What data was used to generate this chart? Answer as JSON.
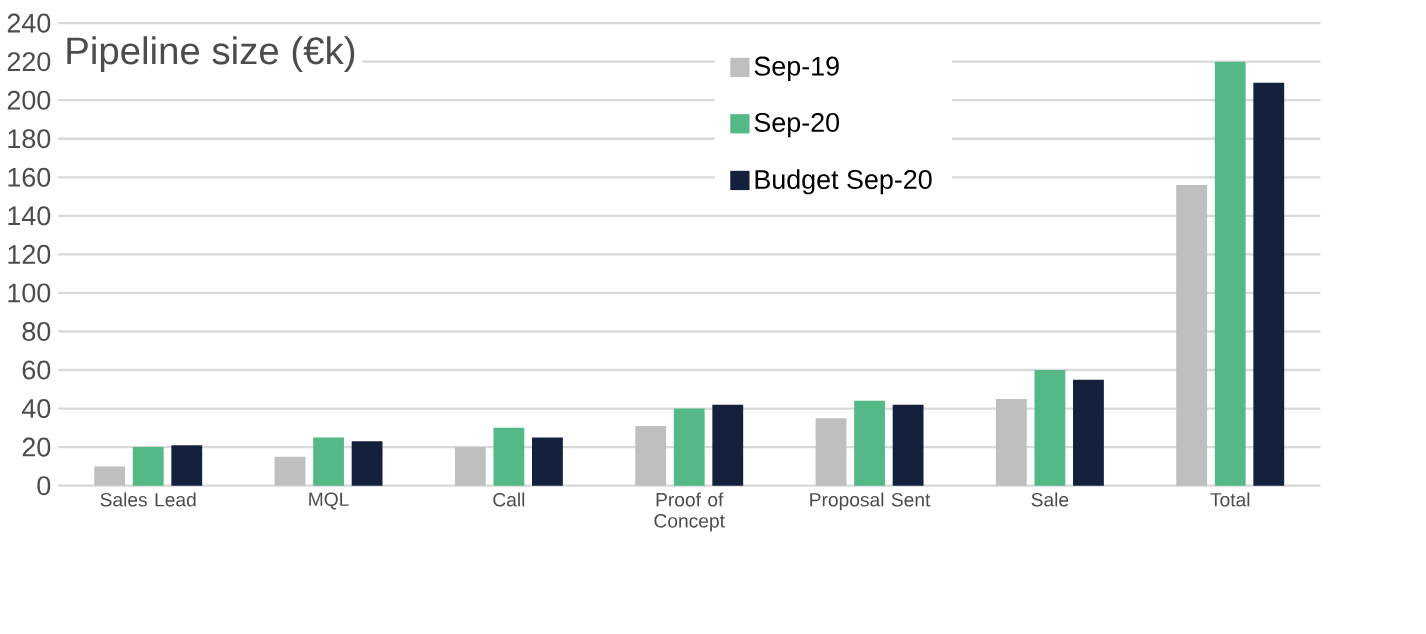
{
  "chart_data": {
    "type": "bar",
    "title": "Pipeline size (€k)",
    "categories": [
      "Sales Lead",
      "MQL",
      "Call",
      "Proof of Concept",
      "Proposal Sent",
      "Sale",
      "Total"
    ],
    "series": [
      {
        "name": "Sep-19",
        "color": "#bfbfbf",
        "values": [
          10,
          15,
          20,
          31,
          35,
          45,
          156
        ]
      },
      {
        "name": "Sep-20",
        "color": "#55b987",
        "values": [
          20,
          25,
          30,
          40,
          44,
          60,
          220
        ]
      },
      {
        "name": "Budget Sep-20",
        "color": "#14213d",
        "values": [
          21,
          23,
          25,
          42,
          42,
          55,
          209
        ]
      }
    ],
    "ylim": [
      0,
      240
    ],
    "yticks": [
      0,
      20,
      40,
      60,
      80,
      100,
      120,
      140,
      160,
      180,
      200,
      220,
      240
    ],
    "grid": "y",
    "legend": "top"
  }
}
